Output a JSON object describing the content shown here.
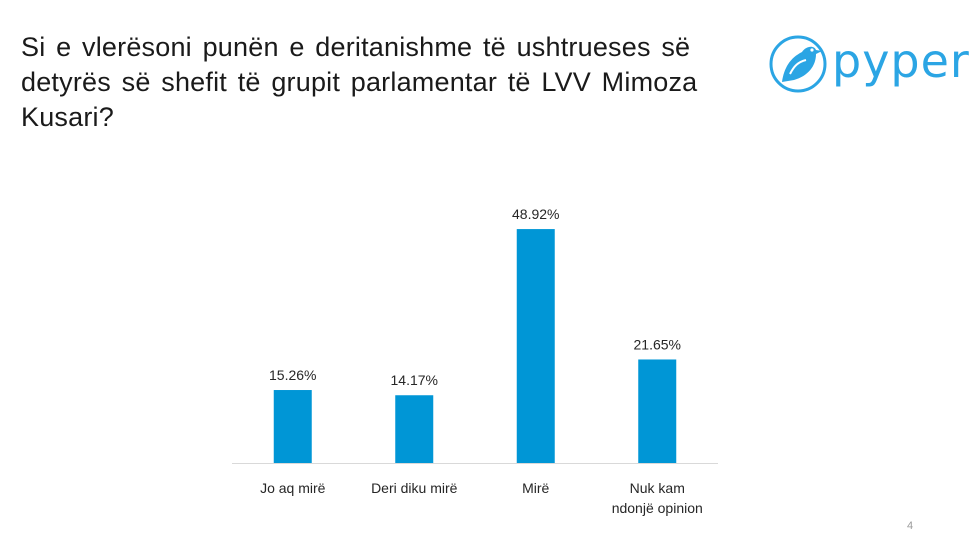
{
  "title": "Si e vlerësoni punën e deritanishme të ushtrueses së\ndetyrës së shefit të grupit parlamentar të LVV Mimoza\nKusari?",
  "logo": {
    "text": "pyper",
    "icon": "bird-icon",
    "color": "#2ba5e4"
  },
  "page_number": "4",
  "chart_data": {
    "type": "bar",
    "categories": [
      [
        "Jo aq mirë"
      ],
      [
        "Deri diku mirë"
      ],
      [
        "Mirë"
      ],
      [
        "Nuk kam",
        "ndonjë opinion"
      ]
    ],
    "values": [
      15.26,
      14.17,
      48.92,
      21.65
    ],
    "data_labels": [
      "15.26%",
      "14.17%",
      "48.92%",
      "21.65%"
    ],
    "bar_color": "#0096d6",
    "ylim": [
      0,
      55
    ],
    "grid": false,
    "legend": false
  }
}
